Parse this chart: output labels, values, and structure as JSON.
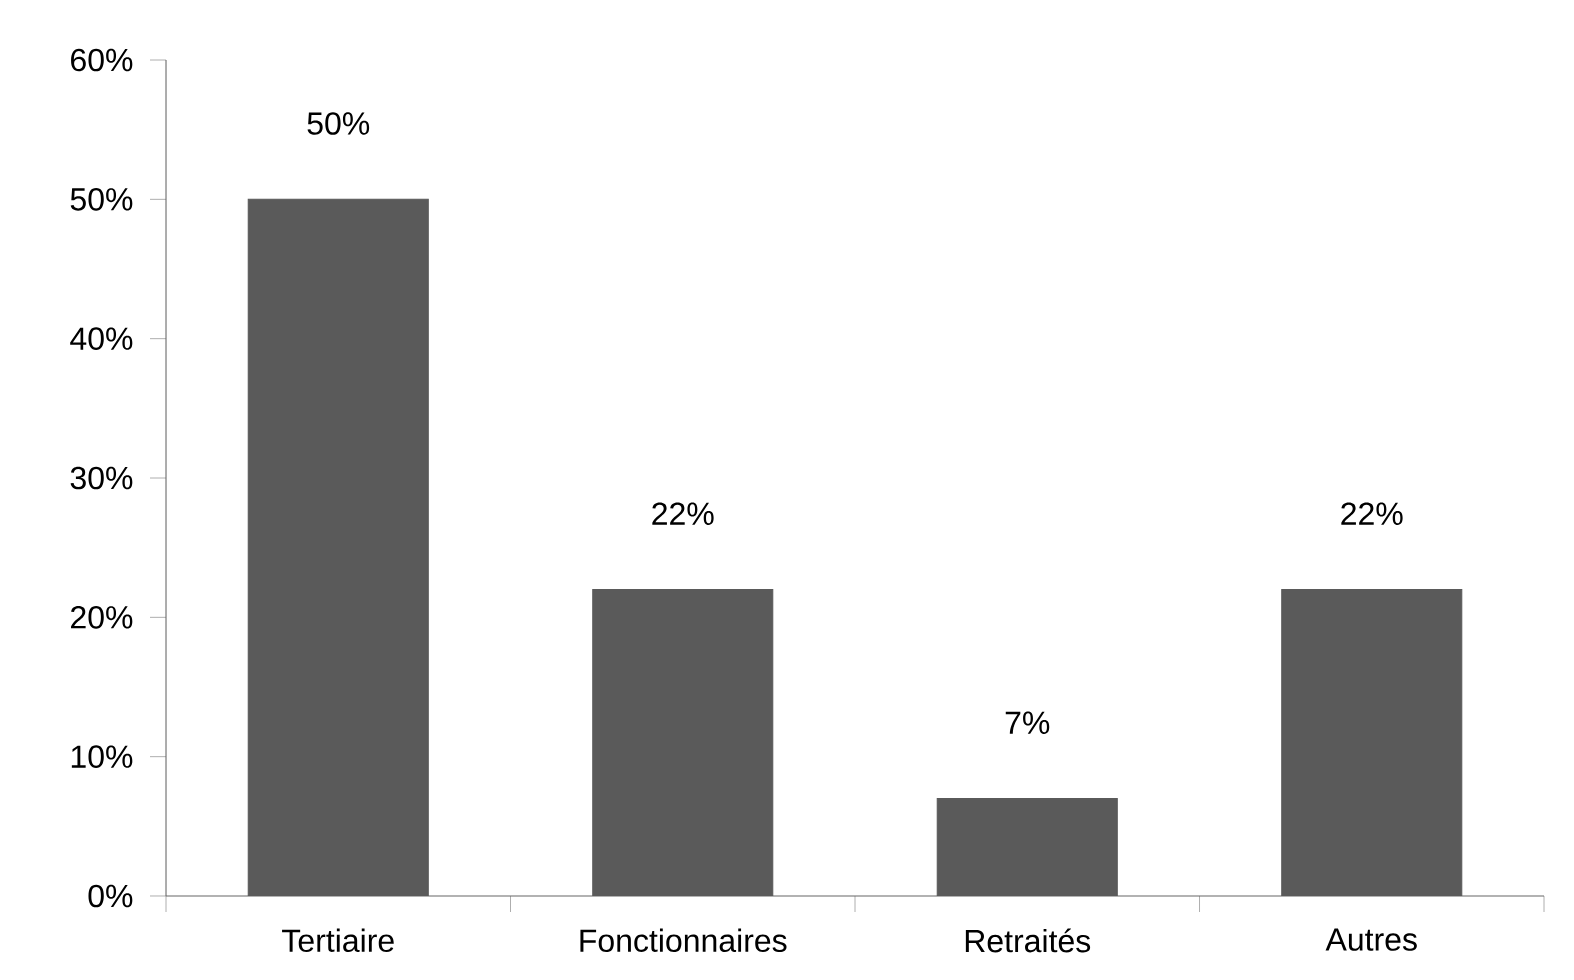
{
  "chart_data": {
    "type": "bar",
    "categories": [
      "Tertiaire",
      "Fonctionnaires",
      "Retraités",
      "Autres"
    ],
    "values": [
      50,
      22,
      7,
      22
    ],
    "value_labels": [
      "50%",
      "22%",
      "7%",
      "22%"
    ],
    "color": "#5a5a5a",
    "ylim": [
      0,
      60
    ],
    "yticks": [
      {
        "value": 0,
        "label": "0%"
      },
      {
        "value": 10,
        "label": "10%"
      },
      {
        "value": 20,
        "label": "20%"
      },
      {
        "value": 30,
        "label": "30%"
      },
      {
        "value": 40,
        "label": "40%"
      },
      {
        "value": 50,
        "label": "50%"
      },
      {
        "value": 60,
        "label": "60%"
      }
    ]
  }
}
